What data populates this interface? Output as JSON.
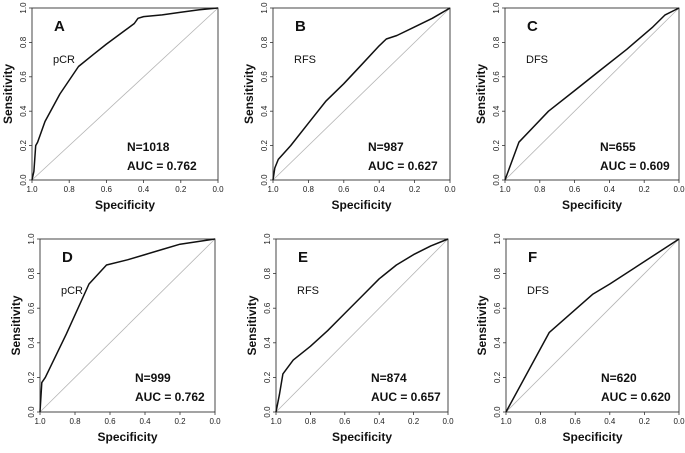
{
  "chart_data": [
    {
      "type": "line",
      "panel": "A",
      "label": "pCR",
      "n_text": "N=1018",
      "auc_text": "AUC = 0.762",
      "xlabel": "Specificity",
      "ylabel": "Sensitivity",
      "xlim": [
        1.0,
        0.0
      ],
      "ylim": [
        0.0,
        1.0
      ],
      "x_ticks": [
        "1.0",
        "0.8",
        "0.6",
        "0.4",
        "0.2",
        "0.0"
      ],
      "y_ticks": [
        "0.0",
        "0.2",
        "0.4",
        "0.6",
        "0.8",
        "1.0"
      ],
      "specificity": [
        1.0,
        0.99,
        0.98,
        0.97,
        0.93,
        0.85,
        0.75,
        0.67,
        0.6,
        0.5,
        0.45,
        0.43,
        0.4,
        0.3,
        0.2,
        0.1,
        0.0
      ],
      "sensitivity": [
        0.0,
        0.05,
        0.2,
        0.22,
        0.34,
        0.5,
        0.66,
        0.73,
        0.79,
        0.87,
        0.91,
        0.94,
        0.95,
        0.96,
        0.975,
        0.99,
        1.0
      ]
    },
    {
      "type": "line",
      "panel": "B",
      "label": "RFS",
      "n_text": "N=987",
      "auc_text": "AUC = 0.627",
      "xlabel": "Specificity",
      "ylabel": "Sensitivity",
      "xlim": [
        1.0,
        0.0
      ],
      "ylim": [
        0.0,
        1.0
      ],
      "x_ticks": [
        "1.0",
        "0.8",
        "0.6",
        "0.4",
        "0.2",
        "0.0"
      ],
      "y_ticks": [
        "0.0",
        "0.2",
        "0.4",
        "0.6",
        "0.8",
        "1.0"
      ],
      "specificity": [
        1.0,
        0.99,
        0.97,
        0.9,
        0.8,
        0.7,
        0.6,
        0.5,
        0.4,
        0.36,
        0.3,
        0.2,
        0.1,
        0.05,
        0.0
      ],
      "sensitivity": [
        0.0,
        0.07,
        0.12,
        0.2,
        0.33,
        0.46,
        0.56,
        0.67,
        0.78,
        0.82,
        0.84,
        0.89,
        0.94,
        0.97,
        1.0
      ]
    },
    {
      "type": "line",
      "panel": "C",
      "label": "DFS",
      "n_text": "N=655",
      "auc_text": "AUC = 0.609",
      "xlabel": "Specificity",
      "ylabel": "Sensitivity",
      "xlim": [
        1.0,
        0.0
      ],
      "ylim": [
        0.0,
        1.0
      ],
      "x_ticks": [
        "1.0",
        "0.8",
        "0.6",
        "0.4",
        "0.2",
        "0.0"
      ],
      "y_ticks": [
        "0.0",
        "0.2",
        "0.4",
        "0.6",
        "0.8",
        "1.0"
      ],
      "specificity": [
        1.0,
        0.92,
        0.75,
        0.6,
        0.45,
        0.3,
        0.15,
        0.08,
        0.0
      ],
      "sensitivity": [
        0.0,
        0.22,
        0.4,
        0.52,
        0.64,
        0.76,
        0.89,
        0.96,
        1.0
      ]
    },
    {
      "type": "line",
      "panel": "D",
      "label": "pCR",
      "n_text": "N=999",
      "auc_text": "AUC = 0.762",
      "xlabel": "Specificity",
      "ylabel": "Sensitivity",
      "xlim": [
        1.0,
        0.0
      ],
      "ylim": [
        0.0,
        1.0
      ],
      "x_ticks": [
        "1.0",
        "0.8",
        "0.6",
        "0.4",
        "0.2",
        "0.0"
      ],
      "y_ticks": [
        "0.0",
        "0.2",
        "0.4",
        "0.6",
        "0.8",
        "1.0"
      ],
      "specificity": [
        1.0,
        0.99,
        0.97,
        0.85,
        0.72,
        0.62,
        0.5,
        0.4,
        0.3,
        0.2,
        0.1,
        0.0
      ],
      "sensitivity": [
        0.0,
        0.17,
        0.2,
        0.45,
        0.74,
        0.85,
        0.88,
        0.91,
        0.94,
        0.97,
        0.985,
        1.0
      ]
    },
    {
      "type": "line",
      "panel": "E",
      "label": "RFS",
      "n_text": "N=874",
      "auc_text": "AUC = 0.657",
      "xlabel": "Specificity",
      "ylabel": "Sensitivity",
      "xlim": [
        1.0,
        0.0
      ],
      "ylim": [
        0.0,
        1.0
      ],
      "x_ticks": [
        "1.0",
        "0.8",
        "0.6",
        "0.4",
        "0.2",
        "0.0"
      ],
      "y_ticks": [
        "0.0",
        "0.2",
        "0.4",
        "0.6",
        "0.8",
        "1.0"
      ],
      "specificity": [
        1.0,
        0.98,
        0.96,
        0.9,
        0.8,
        0.7,
        0.6,
        0.5,
        0.4,
        0.3,
        0.2,
        0.1,
        0.0
      ],
      "sensitivity": [
        0.0,
        0.1,
        0.22,
        0.3,
        0.38,
        0.47,
        0.57,
        0.67,
        0.77,
        0.85,
        0.91,
        0.96,
        1.0
      ]
    },
    {
      "type": "line",
      "panel": "F",
      "label": "DFS",
      "n_text": "N=620",
      "auc_text": "AUC = 0.620",
      "xlabel": "Specificity",
      "ylabel": "Sensitivity",
      "xlim": [
        1.0,
        0.0
      ],
      "ylim": [
        0.0,
        1.0
      ],
      "x_ticks": [
        "1.0",
        "0.8",
        "0.6",
        "0.4",
        "0.2",
        "0.0"
      ],
      "y_ticks": [
        "0.0",
        "0.2",
        "0.4",
        "0.6",
        "0.8",
        "1.0"
      ],
      "specificity": [
        1.0,
        0.75,
        0.5,
        0.4,
        0.2,
        0.0
      ],
      "sensitivity": [
        0.0,
        0.46,
        0.68,
        0.74,
        0.87,
        1.0
      ]
    }
  ]
}
